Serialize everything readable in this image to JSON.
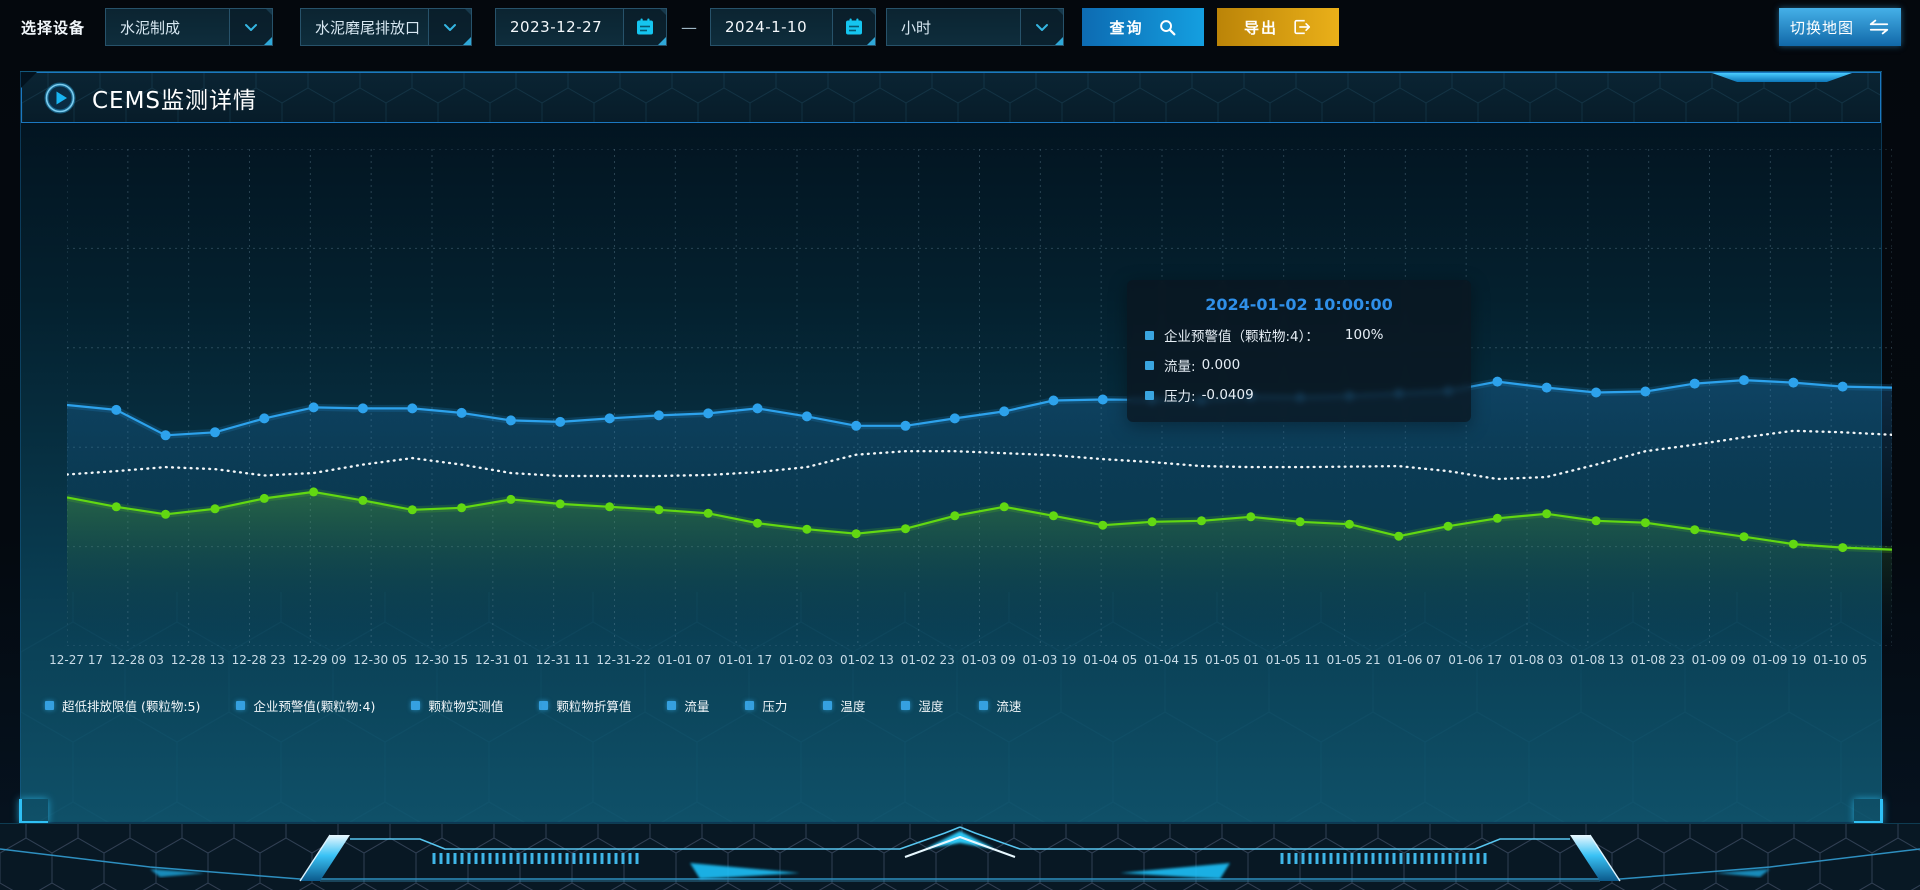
{
  "toolbar": {
    "device_label": "选择设备",
    "device_value": "水泥制成",
    "outlet_value": "水泥磨尾排放口",
    "date_start": "2023-12-27",
    "date_separator": "—",
    "date_end": "2024-1-10",
    "interval_value": "小时",
    "query_label": "查询",
    "export_label": "导出",
    "switch_map_label": "切换地图"
  },
  "panel": {
    "title": "CEMS监测详情"
  },
  "tooltip": {
    "title": "2024-01-02 10:00:00",
    "items": [
      {
        "label": "企业预警值（颗粒物:4）：",
        "value": "100%",
        "wide_gap": true
      },
      {
        "label": "流量:",
        "value": "0.000",
        "wide_gap": false
      },
      {
        "label": "压力:",
        "value": "-0.0409",
        "wide_gap": false
      }
    ],
    "marker_color": "#3aa5e0"
  },
  "chart_data": {
    "type": "line",
    "title": "",
    "x_labels": [
      "12-27 17",
      "12-28 03",
      "12-28 13",
      "12-28 23",
      "12-29 09",
      "12-30 05",
      "12-30 15",
      "12-31 01",
      "12-31 11",
      "12-31-22",
      "01-01 07",
      "01-01 17",
      "01-02 03",
      "01-02 13",
      "01-02 23",
      "01-03 09",
      "01-03 19",
      "01-04 05",
      "01-04 15",
      "01-05 01",
      "01-05 11",
      "01-05 21",
      "01-06 07",
      "01-06 17",
      "01-08 03",
      "01-08 13",
      "01-08 23",
      "01-09 09",
      "01-09 19",
      "01-10 05"
    ],
    "y_axis_labels_visible": false,
    "ylim": [
      0,
      100
    ],
    "grid": true,
    "legend_position": "bottom",
    "legend": [
      "超低排放限值 (颗粒物:5)",
      "企业预警值(颗粒物:4)",
      "颗粒物实测值",
      "颗粒物折算值",
      "流量",
      "压力",
      "温度",
      "湿度",
      "流速"
    ],
    "series": [
      {
        "name": "企业预警值（颗粒物:4）",
        "color": "#2da2ec",
        "line_style": "solid",
        "points": "dots",
        "area_fill": "rgba(35,130,200,0.30)",
        "values": [
          48.5,
          47.5,
          42.4,
          43.0,
          45.8,
          48.0,
          47.8,
          47.8,
          46.9,
          45.4,
          45.1,
          45.8,
          46.4,
          46.8,
          47.8,
          46.2,
          44.3,
          44.3,
          45.8,
          47.2,
          49.4,
          49.6,
          49.5,
          49.4,
          50.2,
          50.0,
          50.3,
          50.8,
          51.3,
          53.2,
          52.0,
          51.0,
          51.2,
          52.8,
          53.5,
          53.0,
          52.2,
          52.0
        ]
      },
      {
        "name": "流量",
        "color": "#f2f6f8",
        "line_style": "dotted",
        "points": "none",
        "area_fill": null,
        "values": [
          34.5,
          35.2,
          36.0,
          35.6,
          34.3,
          34.8,
          36.5,
          37.8,
          36.5,
          34.8,
          34.2,
          34.2,
          34.2,
          34.4,
          35.0,
          36.0,
          38.5,
          39.2,
          39.2,
          38.8,
          38.4,
          37.6,
          37.0,
          36.2,
          36.0,
          36.0,
          36.1,
          36.2,
          35.2,
          33.6,
          34.0,
          36.5,
          39.2,
          40.5,
          42.0,
          43.3,
          43.0,
          42.5
        ]
      },
      {
        "name": "压力",
        "color": "#62d812",
        "line_style": "solid",
        "points": "dots",
        "area_fill": "rgba(110,210,40,0.28)",
        "values": [
          29.9,
          28.0,
          26.5,
          27.6,
          29.7,
          31.0,
          29.3,
          27.4,
          27.8,
          29.5,
          28.6,
          28.0,
          27.4,
          26.7,
          24.7,
          23.5,
          22.6,
          23.6,
          26.2,
          28.0,
          26.2,
          24.3,
          25.0,
          25.2,
          26.0,
          25.0,
          24.5,
          22.1,
          24.1,
          25.7,
          26.6,
          25.2,
          24.8,
          23.4,
          22.0,
          20.5,
          19.8,
          19.4
        ]
      }
    ]
  },
  "colors": {
    "accent_cyan": "#19c2f0",
    "query_button": "#1181c8",
    "export_button": "#dd9f12",
    "switch_map_button": "#2f9ad8",
    "tooltip_title": "#2f8fe8",
    "legend_marker": "#35a0e0",
    "grid_line": "rgba(130,165,185,0.30)"
  }
}
